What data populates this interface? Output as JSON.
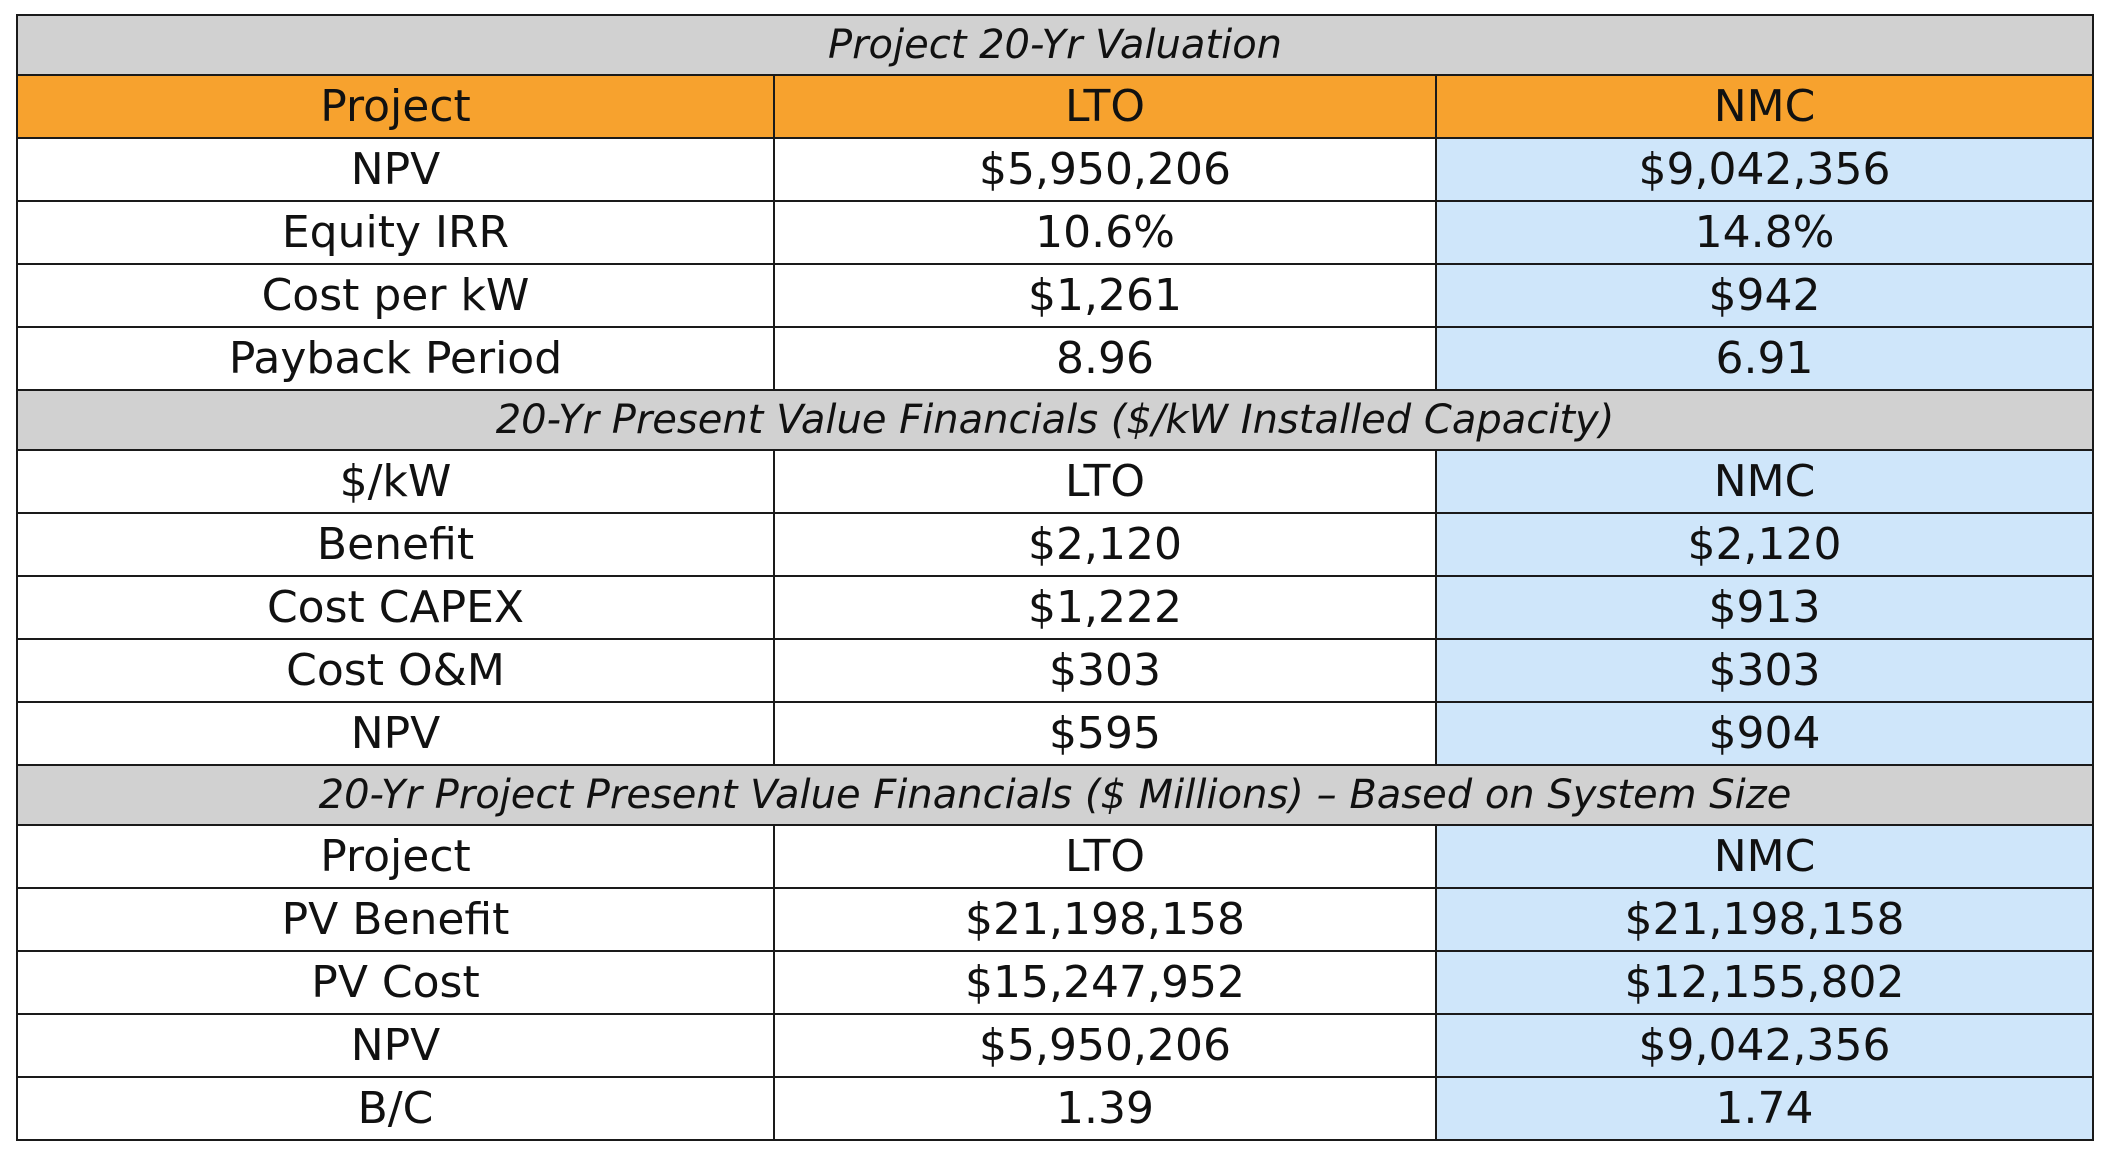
{
  "colors": {
    "section_band": "#d1d1d1",
    "header_orange": "#f7a22e",
    "nmc_highlight": "#cfe6fa",
    "border": "#1a1a1a"
  },
  "sections": [
    {
      "title": "Project 20-Yr Valuation",
      "header": [
        "Project",
        "LTO",
        "NMC"
      ],
      "rows": [
        [
          "NPV",
          "$5,950,206",
          "$9,042,356"
        ],
        [
          "Equity IRR",
          "10.6%",
          "14.8%"
        ],
        [
          "Cost per kW",
          "$1,261",
          "$942"
        ],
        [
          "Payback Period",
          "8.96",
          "6.91"
        ]
      ]
    },
    {
      "title": "20-Yr Present Value Financials ($/kW Installed Capacity)",
      "header": [
        "$/kW",
        "LTO",
        "NMC"
      ],
      "rows": [
        [
          "Benefit",
          "$2,120",
          "$2,120"
        ],
        [
          "Cost CAPEX",
          "$1,222",
          "$913"
        ],
        [
          "Cost O&M",
          "$303",
          "$303"
        ],
        [
          "NPV",
          "$595",
          "$904"
        ]
      ]
    },
    {
      "title": "20-Yr Project Present Value Financials ($ Millions) – Based on System Size",
      "header": [
        "Project",
        "LTO",
        "NMC"
      ],
      "rows": [
        [
          "PV Benefit",
          "$21,198,158",
          "$21,198,158"
        ],
        [
          "PV Cost",
          "$15,247,952",
          "$12,155,802"
        ],
        [
          "NPV",
          "$5,950,206",
          "$9,042,356"
        ],
        [
          "B/C",
          "1.39",
          "1.74"
        ]
      ]
    }
  ]
}
